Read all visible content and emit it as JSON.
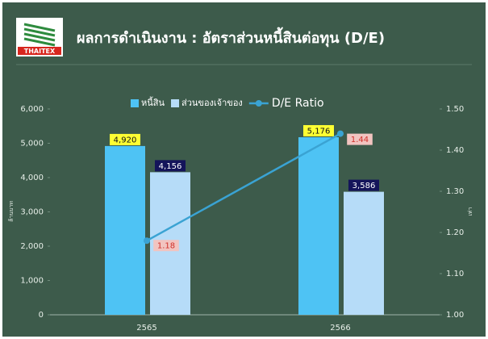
{
  "logo": "THAITEX",
  "chart_data": {
    "type": "bar",
    "title": "ผลการดำเนินงาน : อัตราส่วนหนี้สินต่อทุน (D/E)",
    "y_label": "ล้านบาท",
    "y2_label": "เท่า",
    "categories": [
      "2565",
      "2566"
    ],
    "series": [
      {
        "name": "หนี้สิน",
        "type": "bar",
        "color": "#4ec3f4",
        "values": [
          4920,
          5176
        ],
        "value_labels": [
          "4,920",
          "5,176"
        ],
        "label_bg": "#ffff33",
        "label_color": "#111111"
      },
      {
        "name": "ส่วนของเจ้าของ",
        "type": "bar",
        "color": "#b6dcf8",
        "values": [
          4156,
          3586
        ],
        "value_labels": [
          "4,156",
          "3,586"
        ],
        "label_bg": "#14145a",
        "label_color": "#ffffff"
      },
      {
        "name": "D/E Ratio",
        "type": "line",
        "axis": "y2",
        "color": "#3aa3d3",
        "values": [
          1.18,
          1.44
        ],
        "label_bg": "#f2c4c0",
        "label_color": "#d0302a"
      }
    ],
    "ylim": [
      0,
      6000
    ],
    "yticks": [
      0,
      {
        "value": 1000,
        "label": "1,000"
      },
      {
        "value": 2000,
        "label": "2,000"
      },
      {
        "value": 3000,
        "label": "3,000"
      },
      {
        "value": 4000,
        "label": "4,000"
      },
      {
        "value": 5000,
        "label": "5,000"
      },
      {
        "value": 6000,
        "label": "6,000"
      }
    ],
    "y2lim": [
      1,
      1.5
    ],
    "y2ticks": [
      {
        "value": 1,
        "label": "1.00"
      },
      {
        "value": 1.1,
        "label": "1.10"
      },
      {
        "value": 1.2,
        "label": "1.20"
      },
      {
        "value": 1.3,
        "label": "1.30"
      },
      {
        "value": 1.4,
        "label": "1.40"
      },
      {
        "value": 1.5,
        "label": "1.50"
      }
    ],
    "grid": false,
    "legend": "top"
  }
}
